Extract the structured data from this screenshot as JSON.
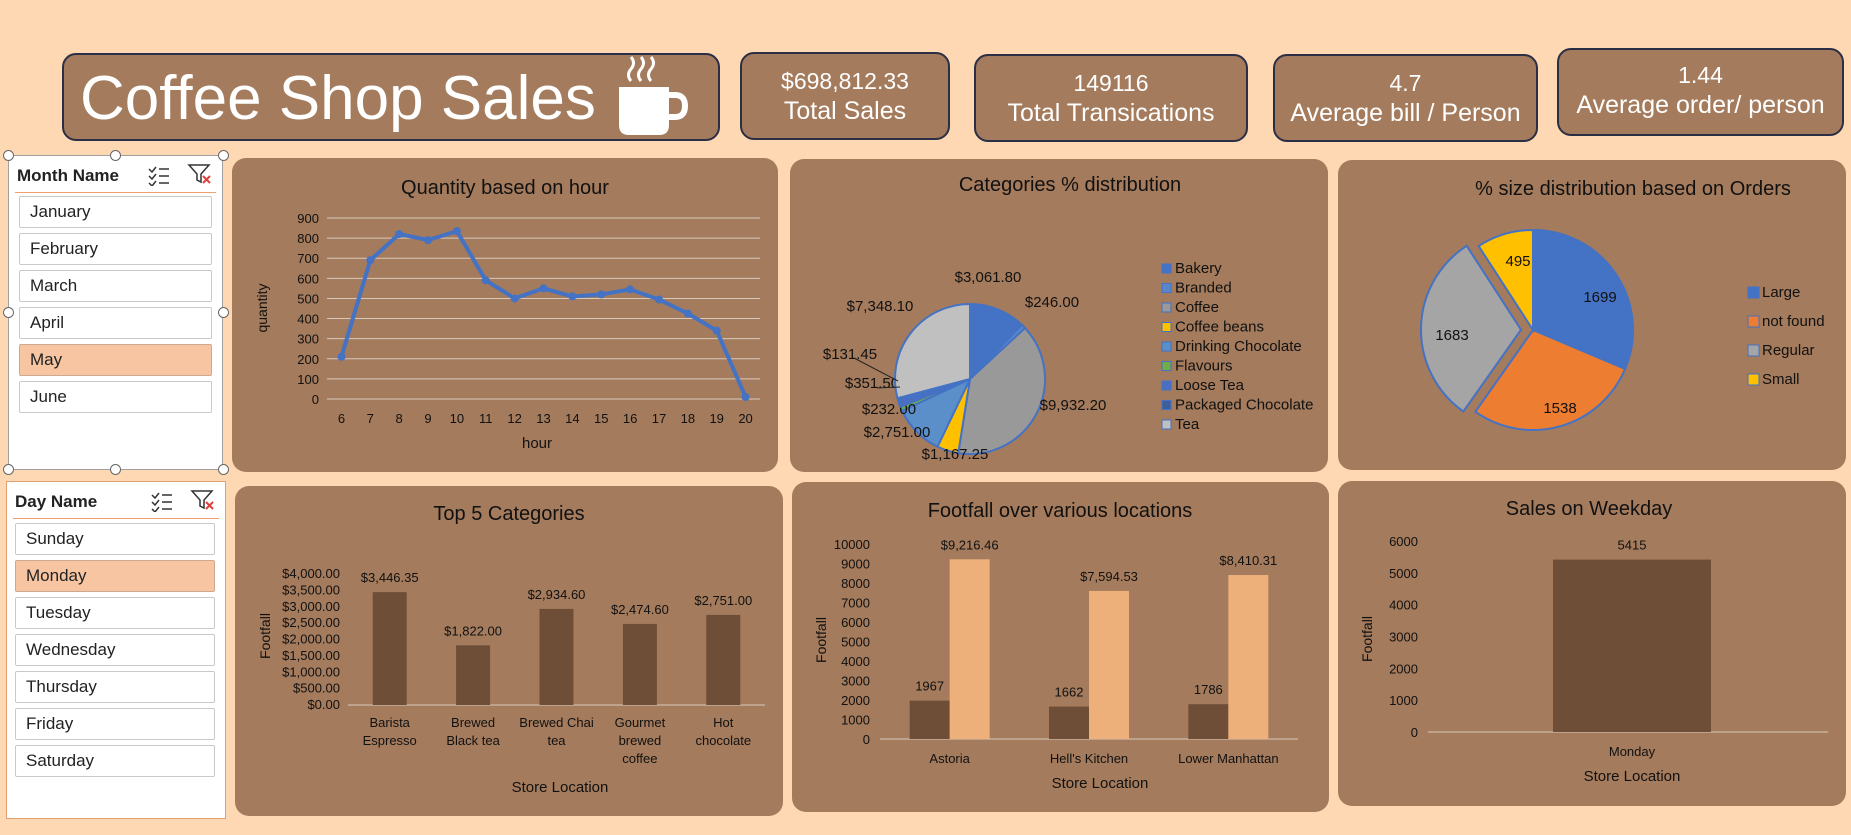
{
  "header": {
    "title": "Coffee Shop Sales",
    "kpis": [
      {
        "value": "$698,812.33",
        "label": "Total Sales"
      },
      {
        "value": "149116",
        "label": "Total Transications"
      },
      {
        "value": "4.7",
        "label": "Average bill / Person"
      },
      {
        "value": "1.44",
        "label": "Average order/ person"
      }
    ]
  },
  "slicers": {
    "month": {
      "title": "Month Name",
      "items": [
        "January",
        "February",
        "March",
        "April",
        "May",
        "June"
      ],
      "selected": "May"
    },
    "day": {
      "title": "Day Name",
      "items": [
        "Sunday",
        "Monday",
        "Tuesday",
        "Wednesday",
        "Thursday",
        "Friday",
        "Saturday"
      ],
      "selected": "Monday"
    }
  },
  "colors": {
    "background": "#fdd8b2",
    "panel": "#a47b5c",
    "line": "#4472c4",
    "bar_dark": "#6f4e37",
    "bar_light": "#edb07a",
    "slicer_selected": "#f8c5a3"
  },
  "chart_data": [
    {
      "type": "line",
      "title": "Quantity based on hour",
      "xlabel": "hour",
      "ylabel": "quantity",
      "x": [
        6,
        7,
        8,
        9,
        10,
        11,
        12,
        13,
        14,
        15,
        16,
        17,
        18,
        19,
        20
      ],
      "values": [
        210,
        690,
        820,
        790,
        835,
        590,
        500,
        550,
        510,
        520,
        545,
        495,
        425,
        340,
        10
      ],
      "ylim": [
        0,
        900
      ],
      "yticks": [
        "0",
        "100",
        "200",
        "300",
        "400",
        "500",
        "600",
        "700",
        "800",
        "900"
      ],
      "grid": true
    },
    {
      "type": "pie",
      "title": "Categories %  distribution",
      "labels": [
        "Bakery",
        "Branded",
        "Coffee",
        "Coffee beans",
        "Drinking Chocolate",
        "Flavours",
        "Loose Tea",
        "Packaged Chocolate",
        "Tea"
      ],
      "values": [
        3061.8,
        246.0,
        9932.2,
        1167.25,
        2751.0,
        232.0,
        351.5,
        131.45,
        7348.1
      ],
      "value_labels": [
        "$3,061.80",
        "$246.00",
        "$9,932.20",
        "$1,167.25",
        "$2,751.00",
        "$232.00",
        "$351.50",
        "$131.45",
        "$7,348.10"
      ],
      "colors": [
        "#4472c4",
        "#5a86cc",
        "#999999",
        "#ffc000",
        "#5b8fc9",
        "#70ad47",
        "#4a6fc2",
        "#3f5f9a",
        "#c0c0c0"
      ],
      "legend": "right"
    },
    {
      "type": "pie",
      "title": "% size distribution based on Orders",
      "labels": [
        "Large",
        "not found",
        "Regular",
        "Small"
      ],
      "values": [
        1699,
        1538,
        1683,
        495
      ],
      "value_labels": [
        "1699",
        "1538",
        "1683",
        "495"
      ],
      "colors": [
        "#4472c4",
        "#ed7d31",
        "#a5a5a5",
        "#ffc000"
      ],
      "legend": "right"
    },
    {
      "type": "bar",
      "title": "Top 5  Categories",
      "xlabel": "Store Location",
      "ylabel": "Footfall",
      "categories": [
        [
          "Barista",
          "Espresso"
        ],
        [
          "Brewed",
          "Black tea"
        ],
        [
          "Brewed Chai",
          "tea"
        ],
        [
          "Gourmet",
          "brewed",
          "coffee"
        ],
        [
          "Hot",
          "chocolate"
        ]
      ],
      "values": [
        3446.35,
        1822.0,
        2934.6,
        2474.6,
        2751.0
      ],
      "value_labels": [
        "$3,446.35",
        "$1,822.00",
        "$2,934.60",
        "$2,474.60",
        "$2,751.00"
      ],
      "ylim": [
        0,
        4000
      ],
      "yticks": [
        "$0.00",
        "$500.00",
        "$1,000.00",
        "$1,500.00",
        "$2,000.00",
        "$2,500.00",
        "$3,000.00",
        "$3,500.00",
        "$4,000.00"
      ]
    },
    {
      "type": "bar",
      "title": "Footfall over various locations",
      "xlabel": "Store Location",
      "ylabel": "Footfall",
      "categories": [
        "Astoria",
        "Hell's Kitchen",
        "Lower Manhattan"
      ],
      "series": [
        {
          "values": [
            1967,
            1662,
            1786
          ],
          "value_labels": [
            "1967",
            "1662",
            "1786"
          ]
        },
        {
          "values": [
            9216.46,
            7594.53,
            8410.31
          ],
          "value_labels": [
            "$9,216.46",
            "$7,594.53",
            "$8,410.31"
          ]
        }
      ],
      "ylim": [
        0,
        10000
      ],
      "yticks": [
        "0",
        "1000",
        "2000",
        "3000",
        "4000",
        "5000",
        "6000",
        "7000",
        "8000",
        "9000",
        "10000"
      ]
    },
    {
      "type": "bar",
      "title": "Sales on Weekday",
      "xlabel": "Store Location",
      "ylabel": "Footfall",
      "categories": [
        "Monday"
      ],
      "values": [
        5415
      ],
      "value_labels": [
        "5415"
      ],
      "ylim": [
        0,
        6000
      ],
      "yticks": [
        "0",
        "1000",
        "2000",
        "3000",
        "4000",
        "5000",
        "6000"
      ]
    }
  ]
}
